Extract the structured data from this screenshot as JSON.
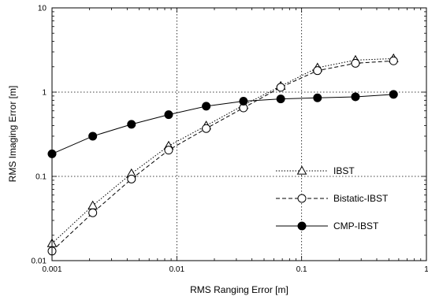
{
  "chart_data": {
    "type": "line",
    "title": "",
    "xlabel": "RMS Ranging Error [m]",
    "ylabel": "RMS Imaging Error [m]",
    "xscale": "log",
    "yscale": "log",
    "xlim": [
      0.001,
      1
    ],
    "ylim": [
      0.01,
      10
    ],
    "xticks": [
      0.001,
      0.01,
      0.1,
      1
    ],
    "xtick_labels": [
      "0.001",
      "0.01",
      "0.1",
      "1"
    ],
    "yticks": [
      0.01,
      0.1,
      1,
      10
    ],
    "ytick_labels": [
      "0.01",
      "0.1",
      "1",
      "10"
    ],
    "grid": "dotted",
    "legend_position": "right",
    "x": [
      0.001,
      0.00212,
      0.00433,
      0.0086,
      0.0172,
      0.0342,
      0.068,
      0.134,
      0.27,
      0.545
    ],
    "series": [
      {
        "name": "IBST",
        "marker": "triangle-open",
        "line": "dotted",
        "values": [
          0.016,
          0.045,
          0.108,
          0.23,
          0.4,
          0.7,
          1.18,
          1.95,
          2.4,
          2.5
        ]
      },
      {
        "name": "Bistatic-IBST",
        "marker": "circle-open",
        "line": "dashed",
        "values": [
          0.013,
          0.037,
          0.093,
          0.205,
          0.37,
          0.65,
          1.14,
          1.8,
          2.2,
          2.35
        ]
      },
      {
        "name": "CMP-IBST",
        "marker": "circle-filled",
        "line": "solid",
        "values": [
          0.185,
          0.3,
          0.415,
          0.54,
          0.68,
          0.78,
          0.83,
          0.855,
          0.88,
          0.94
        ]
      }
    ]
  }
}
